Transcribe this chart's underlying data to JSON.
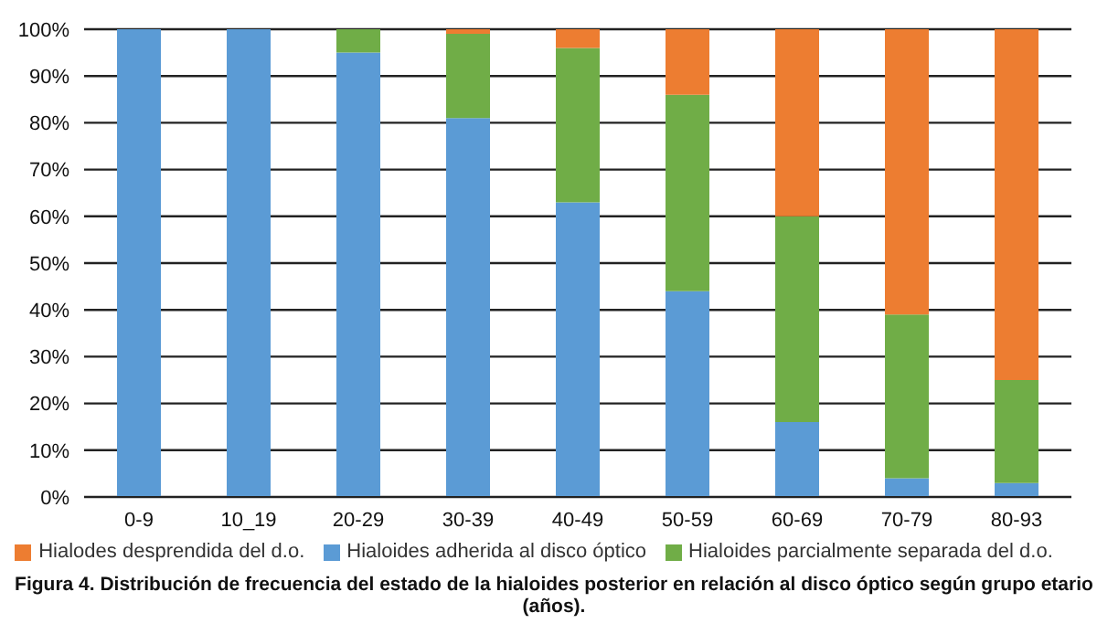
{
  "chart_data": {
    "type": "bar",
    "stacked": true,
    "categories": [
      "0-9",
      "10_19",
      "20-29",
      "30-39",
      "40-49",
      "50-59",
      "60-69",
      "70-79",
      "80-93"
    ],
    "series": [
      {
        "name": "Hialoides adherida al disco óptico",
        "color": "#5b9bd5",
        "values": [
          100,
          100,
          95,
          81,
          63,
          44,
          16,
          4,
          3
        ]
      },
      {
        "name": "Hialoides parcialmente separada del d.o.",
        "color": "#70ad47",
        "values": [
          0,
          0,
          5,
          18,
          33,
          42,
          44,
          35,
          22
        ]
      },
      {
        "name": "Hialodes desprendida del d.o.",
        "color": "#ed7d31",
        "values": [
          0,
          0,
          0,
          1,
          4,
          14,
          40,
          61,
          75
        ]
      }
    ],
    "ylim": [
      0,
      100
    ],
    "yticks": [
      {
        "value": 0,
        "label": "0%"
      },
      {
        "value": 10,
        "label": "10%"
      },
      {
        "value": 20,
        "label": "20%"
      },
      {
        "value": 30,
        "label": "30%"
      },
      {
        "value": 40,
        "label": "40%"
      },
      {
        "value": 50,
        "label": "50%"
      },
      {
        "value": 60,
        "label": "60%"
      },
      {
        "value": 70,
        "label": "70%"
      },
      {
        "value": 80,
        "label": "80%"
      },
      {
        "value": 90,
        "label": "90%"
      },
      {
        "value": 100,
        "label": "100%"
      }
    ],
    "grid": "y",
    "legend": "bottom",
    "annotations": [
      "Figura 4. Distribución de frecuencia del estado de la hialoides posterior en relación al disco óptico según grupo etario (años)."
    ]
  }
}
